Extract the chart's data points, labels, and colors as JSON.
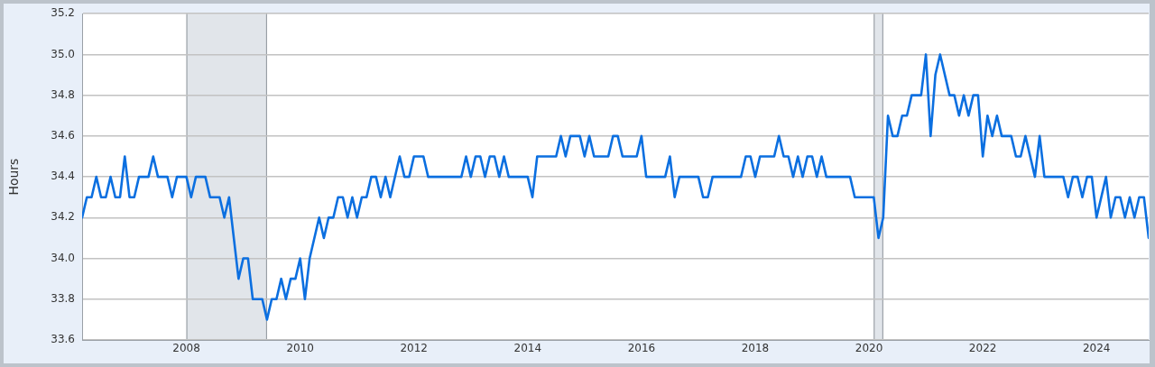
{
  "chart_data": {
    "type": "line",
    "ylabel": "Hours",
    "xlim": [
      "2006-03",
      "2024-12"
    ],
    "xticks": [
      "2008",
      "2010",
      "2012",
      "2014",
      "2016",
      "2018",
      "2020",
      "2022",
      "2024"
    ],
    "ylim": [
      33.6,
      35.2
    ],
    "yticks": [
      33.6,
      33.8,
      {
        "value": 34,
        "label": "34.0"
      },
      34.2,
      34.4,
      34.6,
      34.8,
      {
        "value": 35,
        "label": "35.0"
      },
      35.2
    ],
    "grid": "y",
    "legend": false,
    "marker": "none",
    "line_style": "solid",
    "bands": [
      {
        "axis": "x",
        "from": "2008-01",
        "to": "2009-06",
        "color": "#e1e5ea"
      },
      {
        "axis": "x",
        "from": "2020-02",
        "to": "2020-04",
        "color": "#e1e5ea"
      }
    ],
    "series": [
      {
        "color": "#0b6fe0",
        "x": [
          "2006-03",
          "2006-04",
          "2006-05",
          "2006-06",
          "2006-07",
          "2006-08",
          "2006-09",
          "2006-10",
          "2006-11",
          "2006-12",
          "2007-01",
          "2007-02",
          "2007-03",
          "2007-05",
          "2007-06",
          "2007-07",
          "2007-09",
          "2007-10",
          "2007-11",
          "2008-01",
          "2008-02",
          "2008-03",
          "2008-05",
          "2008-06",
          "2008-08",
          "2008-09",
          "2008-10",
          "2008-12",
          "2009-01",
          "2009-02",
          "2009-03",
          "2009-05",
          "2009-06",
          "2009-07",
          "2009-08",
          "2009-09",
          "2009-10",
          "2009-11",
          "2009-12",
          "2010-01",
          "2010-02",
          "2010-03",
          "2010-05",
          "2010-06",
          "2010-07",
          "2010-08",
          "2010-09",
          "2010-10",
          "2010-11",
          "2010-12",
          "2011-01",
          "2011-02",
          "2011-03",
          "2011-04",
          "2011-05",
          "2011-06",
          "2011-07",
          "2011-08",
          "2011-10",
          "2011-11",
          "2011-12",
          "2012-01",
          "2012-03",
          "2012-04",
          "2012-11",
          "2012-12",
          "2013-01",
          "2013-02",
          "2013-03",
          "2013-04",
          "2013-05",
          "2013-06",
          "2013-07",
          "2013-08",
          "2013-09",
          "2014-01",
          "2014-02",
          "2014-03",
          "2014-07",
          "2014-08",
          "2014-09",
          "2014-10",
          "2014-12",
          "2015-01",
          "2015-02",
          "2015-03",
          "2015-06",
          "2015-07",
          "2015-08",
          "2015-09",
          "2015-12",
          "2016-01",
          "2016-02",
          "2016-06",
          "2016-07",
          "2016-08",
          "2016-09",
          "2017-01",
          "2017-02",
          "2017-03",
          "2017-04",
          "2017-10",
          "2017-11",
          "2017-12",
          "2018-01",
          "2018-02",
          "2018-05",
          "2018-06",
          "2018-07",
          "2018-08",
          "2018-09",
          "2018-10",
          "2018-11",
          "2018-12",
          "2019-01",
          "2019-02",
          "2019-03",
          "2019-04",
          "2019-09",
          "2019-10",
          "2020-02",
          "2020-03",
          "2020-04",
          "2020-05",
          "2020-06",
          "2020-07",
          "2020-08",
          "2020-09",
          "2020-10",
          "2020-12",
          "2021-01",
          "2021-02",
          "2021-03",
          "2021-04",
          "2021-06",
          "2021-07",
          "2021-08",
          "2021-09",
          "2021-10",
          "2021-11",
          "2021-12",
          "2022-01",
          "2022-02",
          "2022-03",
          "2022-04",
          "2022-05",
          "2022-07",
          "2022-08",
          "2022-09",
          "2022-10",
          "2022-12",
          "2023-01",
          "2023-02",
          "2023-06",
          "2023-07",
          "2023-08",
          "2023-09",
          "2023-10",
          "2023-11",
          "2023-12",
          "2024-01",
          "2024-03",
          "2024-04",
          "2024-05",
          "2024-06",
          "2024-07",
          "2024-08",
          "2024-09",
          "2024-10",
          "2024-11",
          "2024-12"
        ],
        "values": [
          34.2,
          34.3,
          34.3,
          34.4,
          34.3,
          34.3,
          34.4,
          34.3,
          34.3,
          34.5,
          34.3,
          34.3,
          34.4,
          34.4,
          34.5,
          34.4,
          34.4,
          34.3,
          34.4,
          34.4,
          34.3,
          34.4,
          34.4,
          34.3,
          34.3,
          34.2,
          34.3,
          33.9,
          34.0,
          34.0,
          33.8,
          33.8,
          33.7,
          33.8,
          33.8,
          33.9,
          33.8,
          33.9,
          33.9,
          34.0,
          33.8,
          34.0,
          34.2,
          34.1,
          34.2,
          34.2,
          34.3,
          34.3,
          34.2,
          34.3,
          34.2,
          34.3,
          34.3,
          34.4,
          34.4,
          34.3,
          34.4,
          34.3,
          34.5,
          34.4,
          34.4,
          34.5,
          34.5,
          34.4,
          34.4,
          34.5,
          34.4,
          34.5,
          34.5,
          34.4,
          34.5,
          34.5,
          34.4,
          34.5,
          34.4,
          34.4,
          34.3,
          34.5,
          34.5,
          34.6,
          34.5,
          34.6,
          34.6,
          34.5,
          34.6,
          34.5,
          34.5,
          34.6,
          34.6,
          34.5,
          34.5,
          34.6,
          34.4,
          34.4,
          34.5,
          34.3,
          34.4,
          34.4,
          34.3,
          34.3,
          34.4,
          34.4,
          34.5,
          34.5,
          34.4,
          34.5,
          34.5,
          34.6,
          34.5,
          34.5,
          34.4,
          34.5,
          34.4,
          34.5,
          34.5,
          34.4,
          34.5,
          34.4,
          34.4,
          34.3,
          34.3,
          34.1,
          34.2,
          34.7,
          34.6,
          34.6,
          34.7,
          34.7,
          34.8,
          34.8,
          35.0,
          34.6,
          34.9,
          35.0,
          34.8,
          34.8,
          34.7,
          34.8,
          34.7,
          34.8,
          34.8,
          34.5,
          34.7,
          34.6,
          34.7,
          34.6,
          34.6,
          34.5,
          34.5,
          34.6,
          34.4,
          34.6,
          34.4,
          34.4,
          34.3,
          34.4,
          34.4,
          34.3,
          34.4,
          34.4,
          34.2,
          34.4,
          34.2,
          34.3,
          34.3,
          34.2,
          34.3,
          34.2,
          34.3,
          34.3,
          34.1
        ]
      }
    ]
  }
}
